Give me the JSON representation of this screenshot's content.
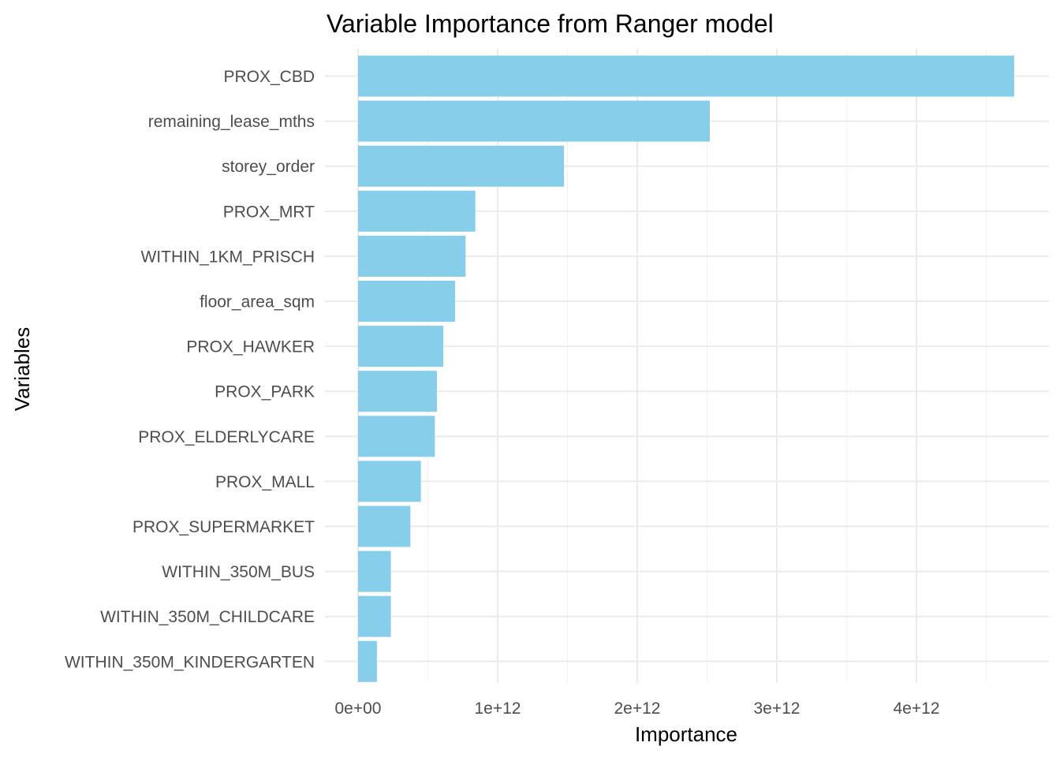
{
  "chart_data": {
    "type": "bar",
    "orientation": "horizontal",
    "title": "Variable Importance from Ranger model",
    "xlabel": "Importance",
    "ylabel": "Variables",
    "bar_color": "#87CEEB",
    "background": "#ffffff",
    "grid": true,
    "xlim": [
      0,
      4700000000000.0
    ],
    "x_ticks": [
      0,
      1000000000000.0,
      2000000000000.0,
      3000000000000.0,
      4000000000000.0
    ],
    "x_tick_labels": [
      "0e+00",
      "1e+12",
      "2e+12",
      "3e+12",
      "4e+12"
    ],
    "categories": [
      "PROX_CBD",
      "remaining_lease_mths",
      "storey_order",
      "PROX_MRT",
      "WITHIN_1KM_PRISCH",
      "floor_area_sqm",
      "PROX_HAWKER",
      "PROX_PARK",
      "PROX_ELDERLYCARE",
      "PROX_MALL",
      "PROX_SUPERMARKET",
      "WITHIN_350M_BUS",
      "WITHIN_350M_CHILDCARE",
      "WITHIN_350M_KINDERGARTEN"
    ],
    "values": [
      4700000000000.0,
      2520000000000.0,
      1475000000000.0,
      840000000000.0,
      770000000000.0,
      695000000000.0,
      610000000000.0,
      565000000000.0,
      550000000000.0,
      450000000000.0,
      375000000000.0,
      235000000000.0,
      235000000000.0,
      135000000000.0
    ]
  }
}
